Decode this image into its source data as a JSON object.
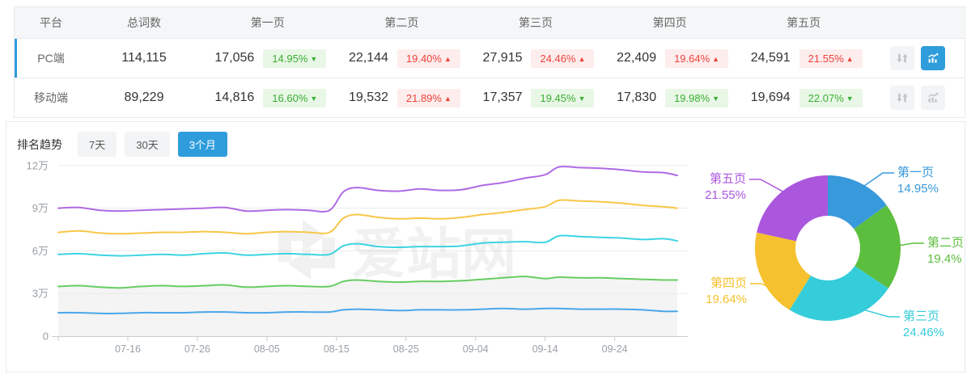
{
  "table": {
    "columns": [
      "平台",
      "总词数",
      "第一页",
      "第二页",
      "第三页",
      "第四页",
      "第五页"
    ],
    "rows": [
      {
        "platform": "PC端",
        "total": "114,115",
        "selected": true,
        "chart_active": true,
        "pages": [
          {
            "value": "17,056",
            "pct": "14.95%",
            "dir": "down"
          },
          {
            "value": "22,144",
            "pct": "19.40%",
            "dir": "up"
          },
          {
            "value": "27,915",
            "pct": "24.46%",
            "dir": "up"
          },
          {
            "value": "22,409",
            "pct": "19.64%",
            "dir": "up"
          },
          {
            "value": "24,591",
            "pct": "21.55%",
            "dir": "up"
          }
        ]
      },
      {
        "platform": "移动端",
        "total": "89,229",
        "selected": false,
        "chart_active": false,
        "pages": [
          {
            "value": "14,816",
            "pct": "16.60%",
            "dir": "down"
          },
          {
            "value": "19,532",
            "pct": "21.89%",
            "dir": "up"
          },
          {
            "value": "17,357",
            "pct": "19.45%",
            "dir": "down"
          },
          {
            "value": "17,830",
            "pct": "19.98%",
            "dir": "down"
          },
          {
            "value": "19,694",
            "pct": "22.07%",
            "dir": "down"
          }
        ]
      }
    ]
  },
  "trend": {
    "label": "排名趋势",
    "tabs": [
      {
        "label": "7天",
        "active": false
      },
      {
        "label": "30天",
        "active": false
      },
      {
        "label": "3个月",
        "active": true
      }
    ]
  },
  "watermark": "爱站网",
  "colors": {
    "accent_blue": "#2f9ddc",
    "badge_up_red": "#ef423b",
    "badge_down_green": "#3aaf34"
  },
  "chart_data": [
    {
      "type": "line",
      "title": "排名趋势 3个月",
      "value_unit": "万",
      "ylim": [
        0,
        12
      ],
      "grid": true,
      "x_days": [
        0,
        3,
        6,
        9,
        12,
        15,
        18,
        21,
        24,
        27,
        30,
        33,
        36,
        39,
        41,
        43,
        46,
        49,
        52,
        55,
        58,
        61,
        64,
        67,
        70,
        72,
        75,
        78,
        81,
        84,
        87,
        89
      ],
      "x": [
        "07-06",
        "07-09",
        "07-12",
        "07-15",
        "07-18",
        "07-21",
        "07-24",
        "07-27",
        "07-30",
        "08-02",
        "08-05",
        "08-08",
        "08-11",
        "08-14",
        "08-16",
        "08-18",
        "08-21",
        "08-24",
        "08-27",
        "08-30",
        "09-02",
        "09-05",
        "09-08",
        "09-11",
        "09-14",
        "09-16",
        "09-19",
        "09-22",
        "09-25",
        "09-28",
        "10-01",
        "10-03"
      ],
      "x_tick_days": [
        10,
        20,
        30,
        40,
        50,
        60,
        70,
        80
      ],
      "x_ticks": [
        "07-16",
        "07-26",
        "08-05",
        "08-15",
        "08-25",
        "09-04",
        "09-14",
        "09-24"
      ],
      "y_ticks": [
        {
          "label": "0",
          "v": 0
        },
        {
          "label": "3万",
          "v": 3
        },
        {
          "label": "6万",
          "v": 6
        },
        {
          "label": "9万",
          "v": 9
        },
        {
          "label": "12万",
          "v": 12
        }
      ],
      "series": [
        {
          "name": "第一页",
          "color": "#4ba7e9",
          "area": false,
          "values": [
            1.65,
            1.65,
            1.6,
            1.6,
            1.65,
            1.65,
            1.65,
            1.7,
            1.7,
            1.65,
            1.65,
            1.7,
            1.7,
            1.7,
            1.85,
            1.9,
            1.85,
            1.8,
            1.85,
            1.85,
            1.85,
            1.9,
            1.95,
            1.9,
            1.95,
            1.95,
            1.9,
            1.9,
            1.9,
            1.85,
            1.75,
            1.75
          ]
        },
        {
          "name": "第二页",
          "color": "#67cd62",
          "area": true,
          "values": [
            3.5,
            3.55,
            3.45,
            3.4,
            3.5,
            3.55,
            3.5,
            3.55,
            3.6,
            3.45,
            3.5,
            3.55,
            3.5,
            3.5,
            3.85,
            3.95,
            3.85,
            3.8,
            3.85,
            3.85,
            3.9,
            4.0,
            4.1,
            4.2,
            4.05,
            4.15,
            4.1,
            4.1,
            4.05,
            4.0,
            3.95,
            3.95
          ]
        },
        {
          "name": "第三页",
          "color": "#3ed4e2",
          "area": false,
          "values": [
            5.75,
            5.8,
            5.7,
            5.65,
            5.7,
            5.75,
            5.7,
            5.8,
            5.85,
            5.7,
            5.75,
            5.8,
            5.75,
            5.75,
            6.35,
            6.5,
            6.3,
            6.25,
            6.3,
            6.3,
            6.35,
            6.55,
            6.6,
            6.65,
            6.6,
            7.05,
            7.0,
            6.95,
            6.9,
            6.8,
            6.85,
            6.7
          ]
        },
        {
          "name": "第四页",
          "color": "#f8c748",
          "area": false,
          "values": [
            7.3,
            7.4,
            7.25,
            7.2,
            7.25,
            7.3,
            7.3,
            7.35,
            7.3,
            7.2,
            7.3,
            7.35,
            7.3,
            7.3,
            8.3,
            8.55,
            8.35,
            8.25,
            8.3,
            8.25,
            8.35,
            8.55,
            8.7,
            8.9,
            9.1,
            9.55,
            9.5,
            9.45,
            9.35,
            9.2,
            9.1,
            9.0
          ]
        },
        {
          "name": "第五页",
          "color": "#af6ae4",
          "area": false,
          "values": [
            9.0,
            9.05,
            8.85,
            8.8,
            8.85,
            8.9,
            8.95,
            9.0,
            9.05,
            8.8,
            8.85,
            8.9,
            8.85,
            8.85,
            10.15,
            10.45,
            10.25,
            10.2,
            10.35,
            10.25,
            10.3,
            10.6,
            10.8,
            11.1,
            11.35,
            11.9,
            11.85,
            11.8,
            11.7,
            11.55,
            11.5,
            11.3
          ]
        }
      ]
    },
    {
      "type": "pie",
      "donut": true,
      "labels": [
        "第一页",
        "第二页",
        "第三页",
        "第四页",
        "第五页"
      ],
      "values": [
        14.95,
        19.4,
        24.46,
        19.64,
        21.55
      ],
      "display": [
        "14.95%",
        "19.4%",
        "24.46%",
        "19.64%",
        "21.55%"
      ],
      "colors": [
        "#3899db",
        "#5cbe3e",
        "#35cdda",
        "#f5c12e",
        "#ab57dd"
      ]
    }
  ]
}
